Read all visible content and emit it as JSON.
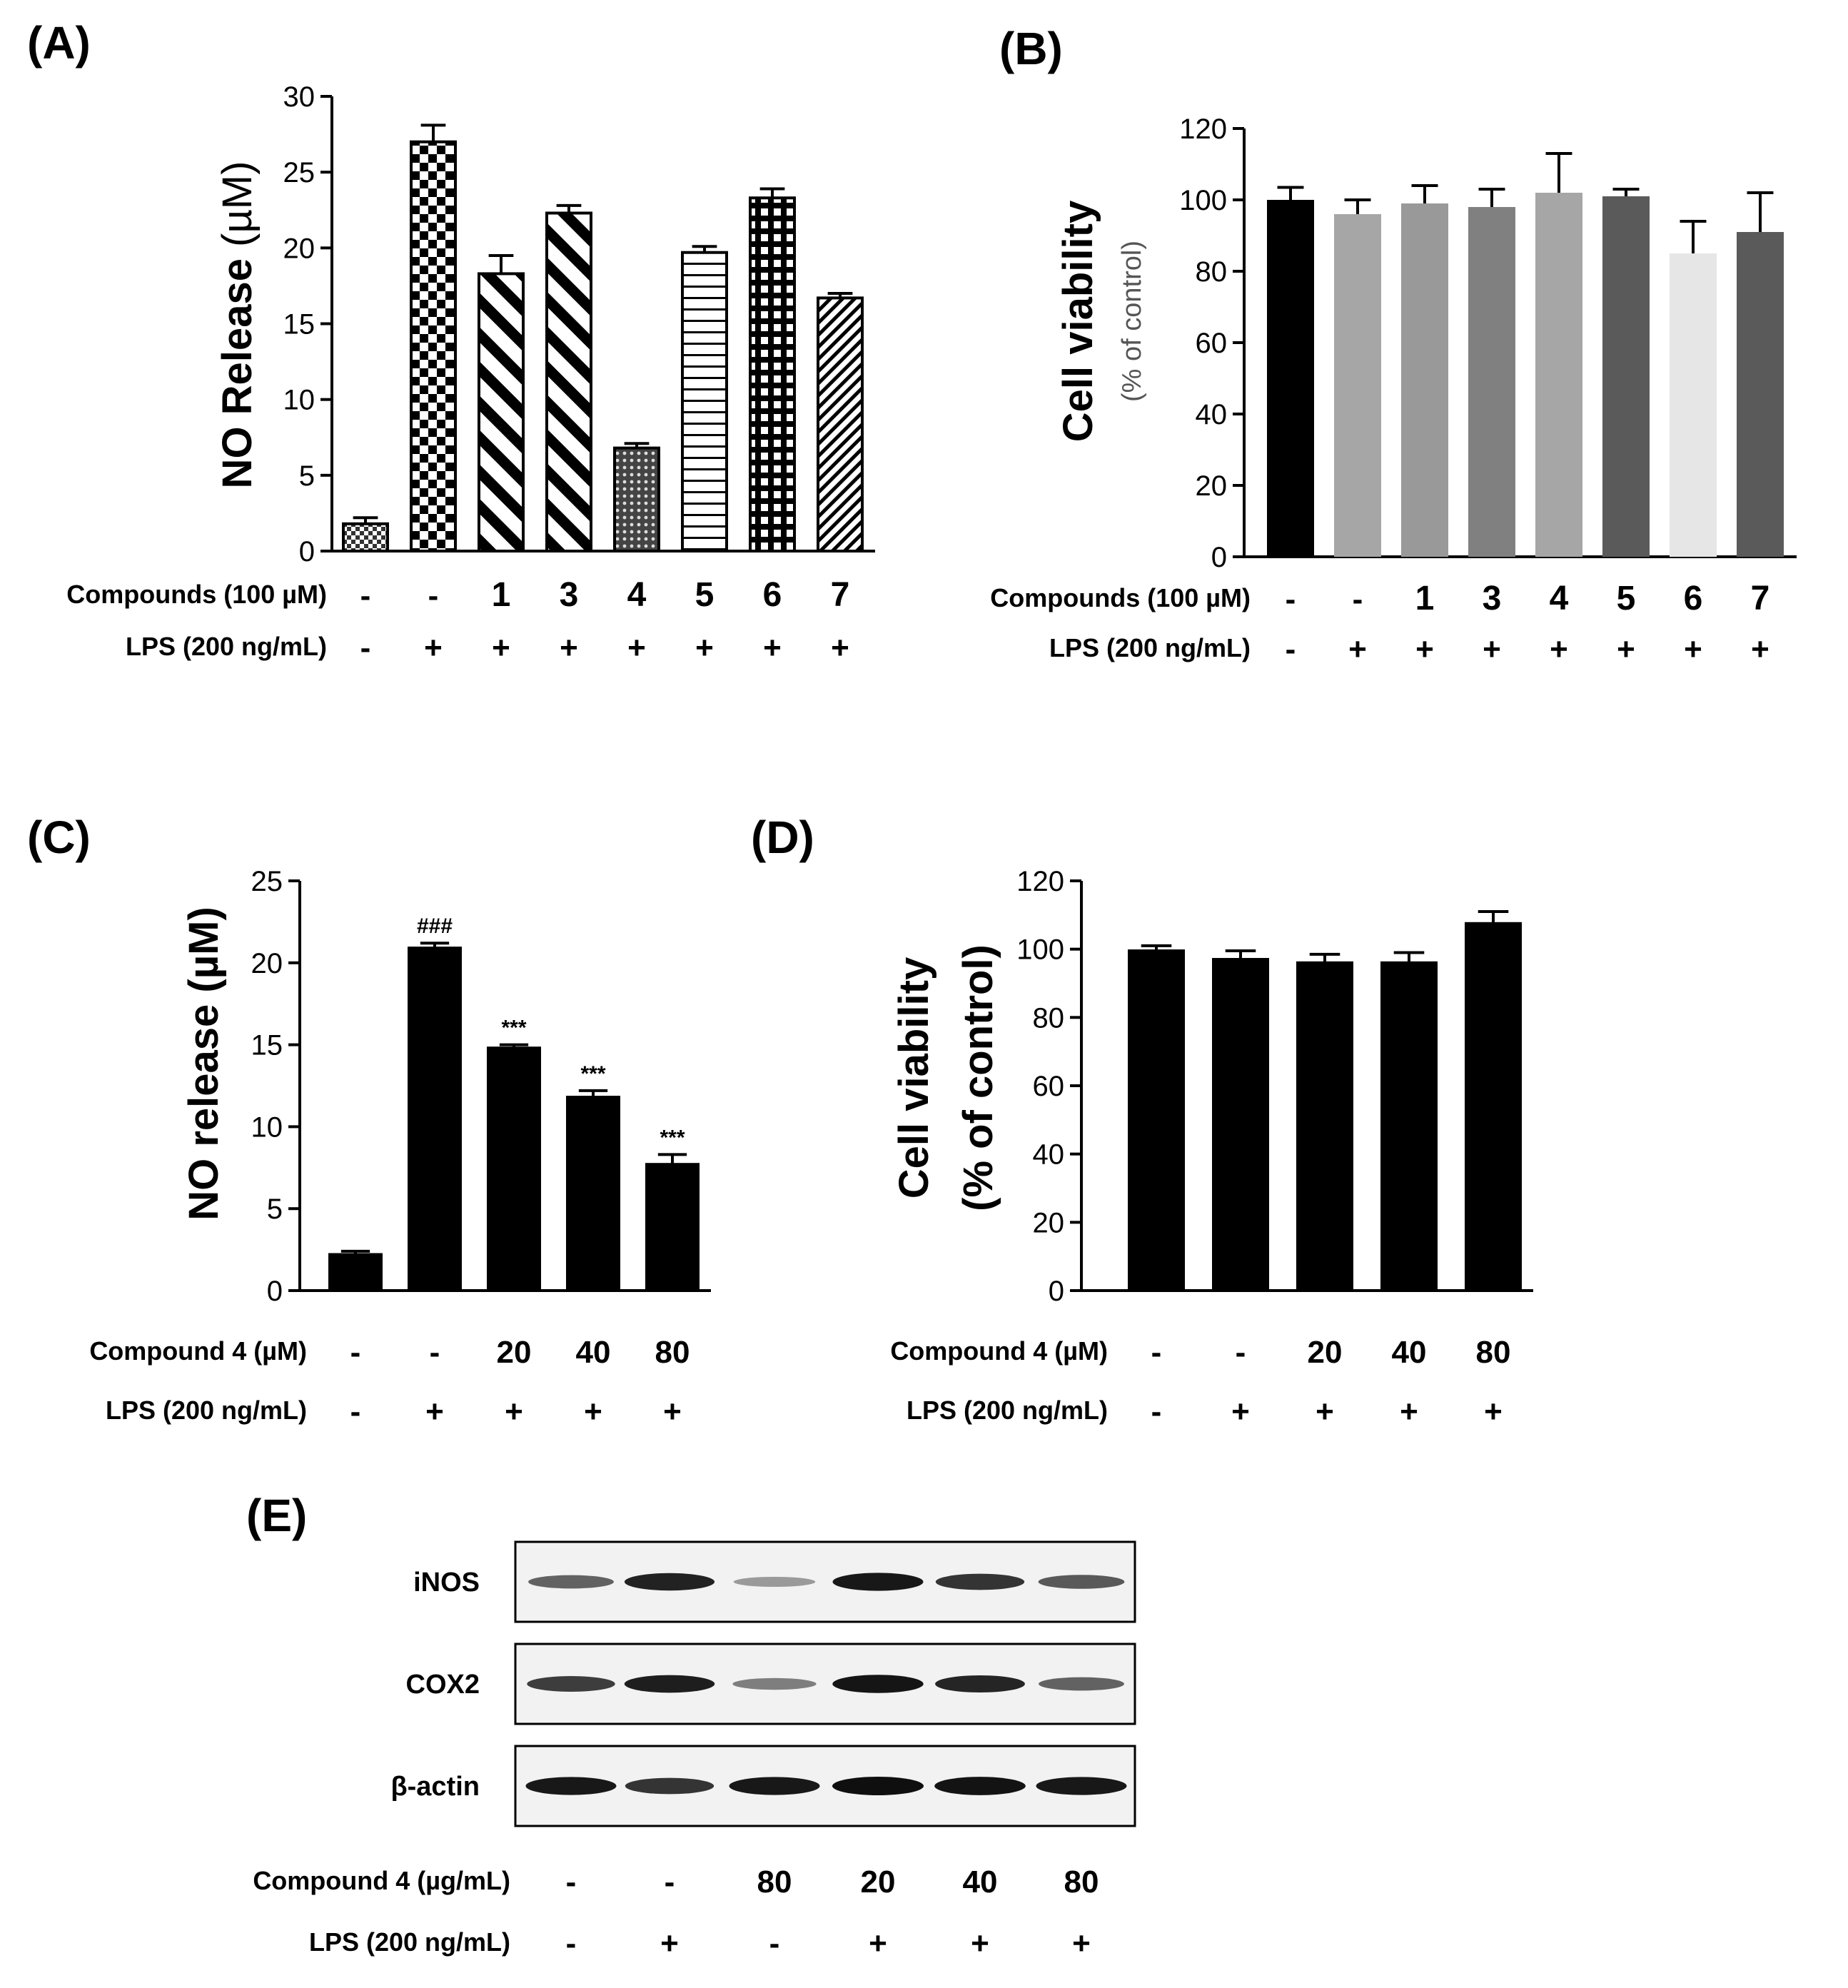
{
  "panels": {
    "A": "(A)",
    "B": "(B)",
    "C": "(C)",
    "D": "(D)",
    "E": "(E)"
  },
  "chart_data": [
    {
      "id": "A",
      "type": "bar",
      "ylabel": "NO Release",
      "ylabel_unit": "(µM)",
      "ylim": [
        0,
        30
      ],
      "yticks": [
        0,
        5,
        10,
        15,
        20,
        25,
        30
      ],
      "values": [
        1.8,
        27.0,
        18.3,
        22.3,
        6.8,
        19.7,
        23.3,
        16.7
      ],
      "errors": [
        0.4,
        1.1,
        1.2,
        0.5,
        0.3,
        0.4,
        0.6,
        0.3
      ],
      "patterns": [
        "fine-check",
        "checker",
        "diag-wide",
        "diag-wide",
        "fine-dots",
        "hlines",
        "grid",
        "diag-fine"
      ],
      "rows": [
        {
          "label": "Compounds (100 µM)",
          "values": [
            "-",
            "-",
            "1",
            "3",
            "4",
            "5",
            "6",
            "7"
          ]
        },
        {
          "label": "LPS (200 ng/mL)",
          "values": [
            "-",
            "+",
            "+",
            "+",
            "+",
            "+",
            "+",
            "+"
          ]
        }
      ]
    },
    {
      "id": "B",
      "type": "bar",
      "ylabel": "Cell viability",
      "ylabel2": "(% of control)",
      "ylim": [
        0,
        120
      ],
      "yticks": [
        0,
        20,
        40,
        60,
        80,
        100,
        120
      ],
      "values": [
        100,
        96,
        99,
        98,
        102,
        101,
        85,
        91
      ],
      "errors": [
        3.5,
        4,
        5,
        5,
        11,
        2,
        9,
        11
      ],
      "colors": [
        "#000000",
        "#a6a6a6",
        "#999999",
        "#808080",
        "#a6a6a6",
        "#5a5a5a",
        "#e6e6e6",
        "#5a5a5a"
      ],
      "rows": [
        {
          "label": "Compounds (100 µM)",
          "values": [
            "-",
            "-",
            "1",
            "3",
            "4",
            "5",
            "6",
            "7"
          ]
        },
        {
          "label": "LPS (200 ng/mL)",
          "values": [
            "-",
            "+",
            "+",
            "+",
            "+",
            "+",
            "+",
            "+"
          ]
        }
      ]
    },
    {
      "id": "C",
      "type": "bar",
      "ylabel": "NO release (µM)",
      "ylim": [
        0,
        25
      ],
      "yticks": [
        0,
        5,
        10,
        15,
        20,
        25
      ],
      "values": [
        2.2,
        20.9,
        14.8,
        11.8,
        7.7
      ],
      "errors": [
        0.2,
        0.3,
        0.2,
        0.4,
        0.6
      ],
      "annotations": [
        "",
        "###",
        "***",
        "***",
        "***"
      ],
      "rows": [
        {
          "label": "Compound 4 (µM)",
          "values": [
            "-",
            "-",
            "20",
            "40",
            "80"
          ]
        },
        {
          "label": "LPS (200 ng/mL)",
          "values": [
            "-",
            "+",
            "+",
            "+",
            "+"
          ]
        }
      ]
    },
    {
      "id": "D",
      "type": "bar",
      "ylabel": "Cell viability",
      "ylabel2": "(% of control)",
      "ylim": [
        0,
        120
      ],
      "yticks": [
        0,
        20,
        40,
        60,
        80,
        100,
        120
      ],
      "values": [
        99.5,
        97,
        96,
        96,
        107.5
      ],
      "errors": [
        1.5,
        2.5,
        2.5,
        3,
        3.5
      ],
      "rows": [
        {
          "label": "Compound 4 (µM)",
          "values": [
            "-",
            "-",
            "20",
            "40",
            "80"
          ]
        },
        {
          "label": "LPS (200 ng/mL)",
          "values": [
            "-",
            "+",
            "+",
            "+",
            "+"
          ]
        }
      ]
    }
  ],
  "western_blot": {
    "bands": [
      {
        "label": "iNOS",
        "intensity": [
          0.55,
          0.9,
          0.25,
          0.95,
          0.8,
          0.6
        ]
      },
      {
        "label": "COX2",
        "intensity": [
          0.75,
          0.92,
          0.4,
          0.97,
          0.88,
          0.55
        ]
      },
      {
        "label": "β-actin",
        "intensity": [
          0.95,
          0.8,
          0.95,
          1.0,
          0.98,
          0.95
        ]
      }
    ],
    "rows": [
      {
        "label": "Compound 4 (µg/mL)",
        "values": [
          "-",
          "-",
          "80",
          "20",
          "40",
          "80"
        ]
      },
      {
        "label": "LPS (200 ng/mL)",
        "values": [
          "-",
          "+",
          "-",
          "+",
          "+",
          "+"
        ]
      }
    ]
  }
}
